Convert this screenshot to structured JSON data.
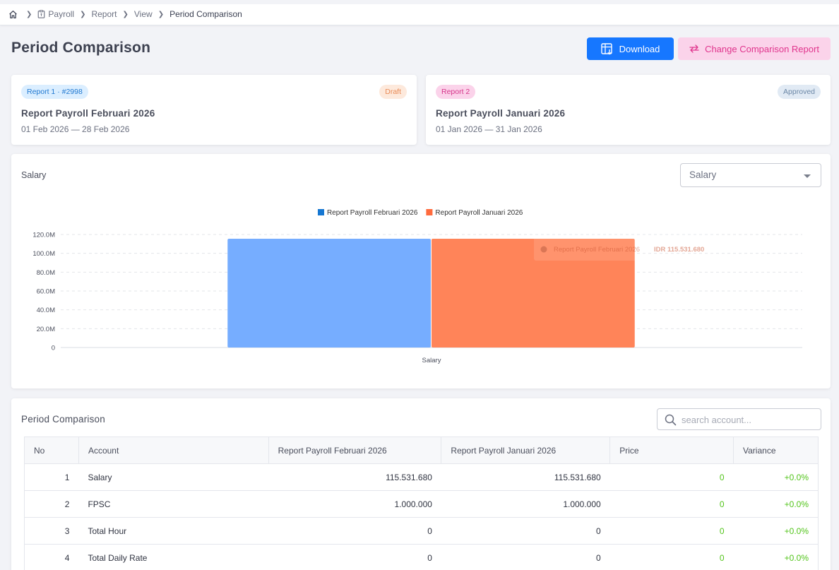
{
  "breadcrumb": {
    "items": [
      "Payroll",
      "Report",
      "View",
      "Period Comparison"
    ]
  },
  "page": {
    "title": "Period Comparison"
  },
  "actions": {
    "download_label": "Download",
    "change_label": "Change Comparison Report"
  },
  "report1": {
    "tag": "Report 1 · #2998",
    "status": "Draft",
    "name": "Report Payroll Februari 2026",
    "dates": "01 Feb 2026 — 28 Feb 2026"
  },
  "report2": {
    "tag": "Report 2",
    "status": "Approved",
    "name": "Report Payroll Januari 2026",
    "dates": "01 Jan 2026 — 31 Jan 2026"
  },
  "chart_section": {
    "label": "Salary",
    "select_value": "Salary",
    "tooltip_title": "Salary",
    "tooltip_series": "Report Payroll Februari 2026",
    "tooltip_value": "IDR 115.531.680"
  },
  "chart_data": {
    "type": "bar",
    "categories": [
      "Salary"
    ],
    "series": [
      {
        "name": "Report Payroll Februari 2026",
        "values": [
          115531680
        ],
        "color": "#76adff"
      },
      {
        "name": "Report Payroll Januari 2026",
        "values": [
          115531680
        ],
        "color": "#ff8459"
      }
    ],
    "legend_colors": [
      "#1677d2",
      "#ff6b3d"
    ],
    "y_ticks": [
      "0",
      "20.0M",
      "40.0M",
      "60.0M",
      "80.0M",
      "100.0M",
      "120.0M"
    ],
    "ylim": [
      0,
      120000000
    ],
    "legend_position": "top-center",
    "grid": true
  },
  "table_section": {
    "title": "Period Comparison",
    "search_placeholder": "search account...",
    "columns": [
      "No",
      "Account",
      "Report Payroll Februari 2026",
      "Report Payroll Januari 2026",
      "Price",
      "Variance"
    ],
    "rows": [
      {
        "no": "1",
        "account": "Salary",
        "r1": "115.531.680",
        "r2": "115.531.680",
        "price": "0",
        "variance": "+0.0%"
      },
      {
        "no": "2",
        "account": "FPSC",
        "r1": "1.000.000",
        "r2": "1.000.000",
        "price": "0",
        "variance": "+0.0%"
      },
      {
        "no": "3",
        "account": "Total Hour",
        "r1": "0",
        "r2": "0",
        "price": "0",
        "variance": "+0.0%"
      },
      {
        "no": "4",
        "account": "Total Daily Rate",
        "r1": "0",
        "r2": "0",
        "price": "0",
        "variance": "+0.0%"
      }
    ]
  }
}
